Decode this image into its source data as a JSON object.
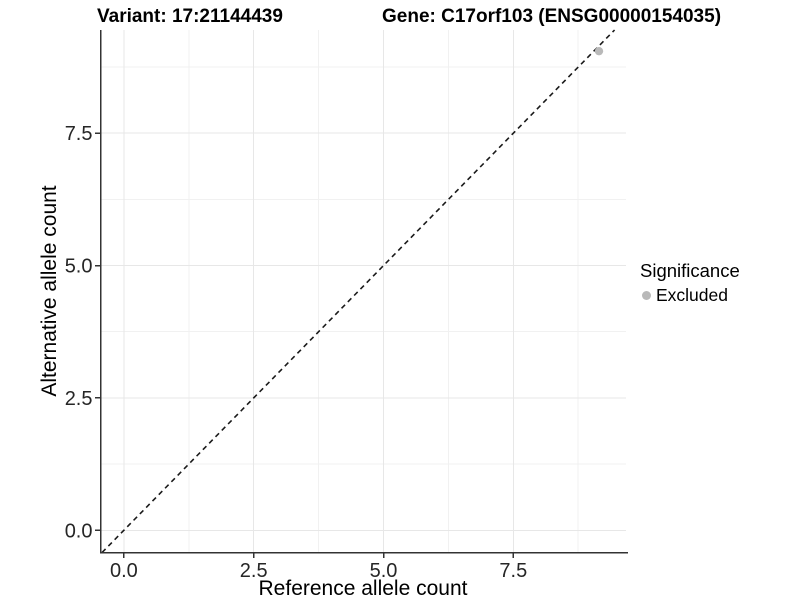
{
  "header": {
    "variant_title": "Variant: 17:21144439",
    "gene_title": "Gene: C17orf103 (ENSG00000154035)"
  },
  "chart_data": {
    "type": "scatter",
    "title": "Variant: 17:21144439 — Gene: C17orf103 (ENSG00000154035)",
    "xlabel": "Reference allele count",
    "ylabel": "Alternative allele count",
    "xlim": [
      -0.45,
      9.67
    ],
    "ylim": [
      -0.42,
      9.45
    ],
    "x_tick_values": [
      0,
      2.5,
      5,
      7.5
    ],
    "x_tick_labels": [
      "0.0",
      "2.5",
      "5.0",
      "7.5"
    ],
    "y_tick_values": [
      0,
      2.5,
      5,
      7.5
    ],
    "y_tick_labels": [
      "0.0",
      "2.5",
      "5.0",
      "7.5"
    ],
    "minor_x": [
      1.25,
      3.75,
      6.25,
      8.75
    ],
    "minor_y": [
      1.25,
      3.75,
      6.25,
      8.75
    ],
    "grid": true,
    "identity_line": {
      "style": "dashed",
      "x1": -0.42,
      "y1": -0.42,
      "x2": 9.45,
      "y2": 9.45
    },
    "series": [
      {
        "name": "Excluded",
        "color": "#b9b9b9",
        "points": [
          {
            "x": 9.15,
            "y": 9.05
          }
        ]
      }
    ],
    "legend": {
      "title": "Significance",
      "position": "right",
      "items": [
        {
          "label": "Excluded",
          "color": "#b9b9b9"
        }
      ]
    },
    "colors": {
      "grid_major": "#e7e7e7",
      "grid_minor": "#f1f1f1",
      "axis_line": "#333333",
      "tick_mark": "#333333",
      "tick_label": "#262626",
      "dashed_line": "#1a1a1a",
      "point": "#b9b9b9"
    }
  }
}
